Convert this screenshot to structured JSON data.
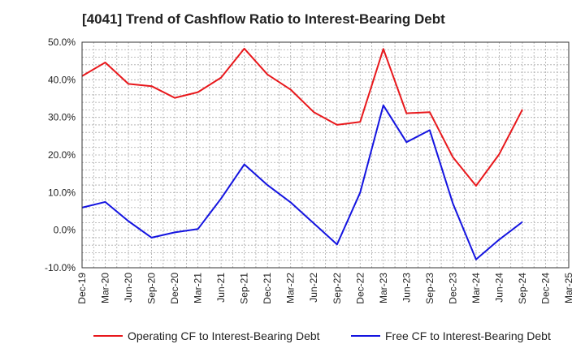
{
  "chart_data": {
    "type": "line",
    "title": "[4041]  Trend of Cashflow Ratio to Interest-Bearing Debt",
    "xlabel": "",
    "ylabel": "",
    "ylim": [
      -10,
      50
    ],
    "yticks": [
      -10,
      0,
      10,
      20,
      30,
      40,
      50
    ],
    "ytick_labels": [
      "-10.0%",
      "0.0%",
      "10.0%",
      "20.0%",
      "30.0%",
      "40.0%",
      "50.0%"
    ],
    "x": [
      "Dec-19",
      "Mar-20",
      "Jun-20",
      "Sep-20",
      "Dec-20",
      "Mar-21",
      "Jun-21",
      "Sep-21",
      "Dec-21",
      "Mar-22",
      "Jun-22",
      "Sep-22",
      "Dec-22",
      "Mar-23",
      "Jun-23",
      "Sep-23",
      "Dec-23",
      "Mar-24",
      "Jun-24",
      "Sep-24",
      "Dec-24",
      "Mar-25"
    ],
    "grid": true,
    "legend_position": "bottom",
    "series": [
      {
        "name": "Operating CF to Interest-Bearing Debt",
        "color": "#e8181c",
        "values": [
          41.0,
          44.6,
          38.9,
          38.3,
          35.2,
          36.7,
          40.6,
          48.3,
          41.4,
          37.4,
          31.4,
          28.0,
          28.8,
          48.2,
          31.1,
          31.4,
          19.4,
          11.8,
          20.2,
          32.1,
          null,
          null
        ]
      },
      {
        "name": "Free CF to Interest-Bearing Debt",
        "color": "#1414e0",
        "values": [
          6.0,
          7.5,
          2.4,
          -2.0,
          -0.6,
          0.3,
          8.4,
          17.5,
          12.0,
          7.4,
          1.8,
          -3.8,
          10.0,
          33.2,
          23.4,
          26.6,
          7.1,
          -7.8,
          -2.5,
          2.2,
          null,
          null
        ]
      }
    ]
  }
}
